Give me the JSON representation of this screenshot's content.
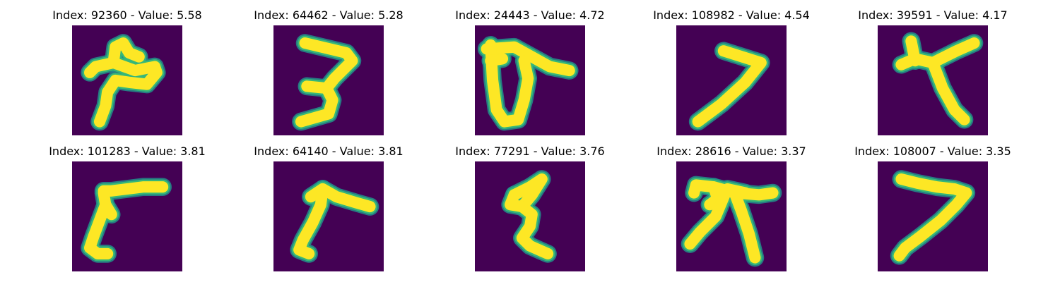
{
  "figure": {
    "background": "#ffffff",
    "colormap": "viridis",
    "image_background": "#440154",
    "stroke_colors": [
      "#fde725",
      "#35b779",
      "#21918c"
    ]
  },
  "chart_data": [
    {
      "type": "image",
      "title": "Index: 92360 - Value: 5.58",
      "index": 92360,
      "value": 5.58
    },
    {
      "type": "image",
      "title": "Index: 64462 - Value: 5.28",
      "index": 64462,
      "value": 5.28
    },
    {
      "type": "image",
      "title": "Index: 24443 - Value: 4.72",
      "index": 24443,
      "value": 4.72
    },
    {
      "type": "image",
      "title": "Index: 108982 - Value: 4.54",
      "index": 108982,
      "value": 4.54
    },
    {
      "type": "image",
      "title": "Index: 39591 - Value: 4.17",
      "index": 39591,
      "value": 4.17
    },
    {
      "type": "image",
      "title": "Index: 101283 - Value: 3.81",
      "index": 101283,
      "value": 3.81
    },
    {
      "type": "image",
      "title": "Index: 64140 - Value: 3.81",
      "index": 64140,
      "value": 3.81
    },
    {
      "type": "image",
      "title": "Index: 77291 - Value: 3.76",
      "index": 77291,
      "value": 3.76
    },
    {
      "type": "image",
      "title": "Index: 28616 - Value: 3.37",
      "index": 28616,
      "value": 3.37
    },
    {
      "type": "image",
      "title": "Index: 108007 - Value: 3.35",
      "index": 108007,
      "value": 3.35
    }
  ]
}
